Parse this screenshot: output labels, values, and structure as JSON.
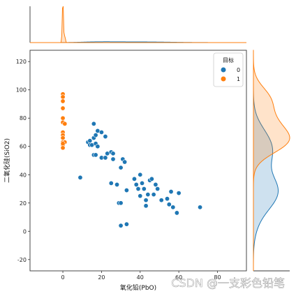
{
  "chart_data": {
    "type": "scatter",
    "kind": "jointplot",
    "xlabel": "氧化铅(PbO)",
    "ylabel": "二氧化硅(SiO2)",
    "xlim": [
      -17,
      95
    ],
    "ylim": [
      -28,
      128
    ],
    "x_ticks": [
      "0",
      "20",
      "40",
      "60",
      "80"
    ],
    "y_ticks": [
      "-20",
      "0",
      "20",
      "40",
      "60",
      "80",
      "100",
      "120"
    ],
    "grid": false,
    "legend": {
      "title": "目标",
      "placement": "top-right",
      "entries": [
        "0",
        "1"
      ]
    },
    "colors": {
      "0": "#1f77b4",
      "1": "#ff7f0e"
    },
    "series": [
      {
        "name": "0",
        "points": [
          [
            9,
            38
          ],
          [
            13,
            63
          ],
          [
            14,
            64
          ],
          [
            14,
            61
          ],
          [
            15,
            61
          ],
          [
            16,
            76
          ],
          [
            16,
            54
          ],
          [
            16,
            66
          ],
          [
            17,
            68
          ],
          [
            17,
            62
          ],
          [
            18,
            60
          ],
          [
            17,
            54
          ],
          [
            18,
            71
          ],
          [
            20,
            52
          ],
          [
            20,
            70
          ],
          [
            22,
            67
          ],
          [
            22,
            52
          ],
          [
            23,
            55
          ],
          [
            25,
            56
          ],
          [
            25,
            34
          ],
          [
            26,
            51
          ],
          [
            26,
            55
          ],
          [
            28,
            33
          ],
          [
            29,
            20
          ],
          [
            30,
            20
          ],
          [
            30,
            45
          ],
          [
            30,
            4
          ],
          [
            31,
            51
          ],
          [
            32,
            49
          ],
          [
            33,
            5
          ],
          [
            33,
            29
          ],
          [
            37,
            37
          ],
          [
            38,
            33
          ],
          [
            39,
            30
          ],
          [
            40,
            25
          ],
          [
            40,
            40
          ],
          [
            41,
            34
          ],
          [
            42,
            30
          ],
          [
            43,
            18
          ],
          [
            43,
            22
          ],
          [
            44,
            26
          ],
          [
            45,
            36
          ],
          [
            46,
            37
          ],
          [
            47,
            26
          ],
          [
            48,
            33
          ],
          [
            49,
            30
          ],
          [
            51,
            22
          ],
          [
            54,
            23
          ],
          [
            55,
            19
          ],
          [
            56,
            28
          ],
          [
            57,
            17
          ],
          [
            59,
            13
          ],
          [
            60,
            27
          ],
          [
            71,
            17
          ]
        ]
      },
      {
        "name": "1",
        "points": [
          [
            0,
            97
          ],
          [
            0,
            95
          ],
          [
            0,
            92
          ],
          [
            0,
            87
          ],
          [
            0,
            80
          ],
          [
            0,
            77
          ],
          [
            1,
            76
          ],
          [
            0,
            70
          ],
          [
            0,
            68
          ],
          [
            0,
            66
          ],
          [
            0,
            63
          ],
          [
            0,
            61
          ],
          [
            0,
            59
          ],
          [
            1,
            63
          ],
          [
            0,
            62
          ]
        ]
      }
    ],
    "marginal_x": {
      "type": "kde",
      "series": [
        "0",
        "1"
      ]
    },
    "marginal_y": {
      "type": "kde",
      "series": [
        "0",
        "1"
      ]
    }
  },
  "watermark": "CSDN @一支彩色铅笔"
}
